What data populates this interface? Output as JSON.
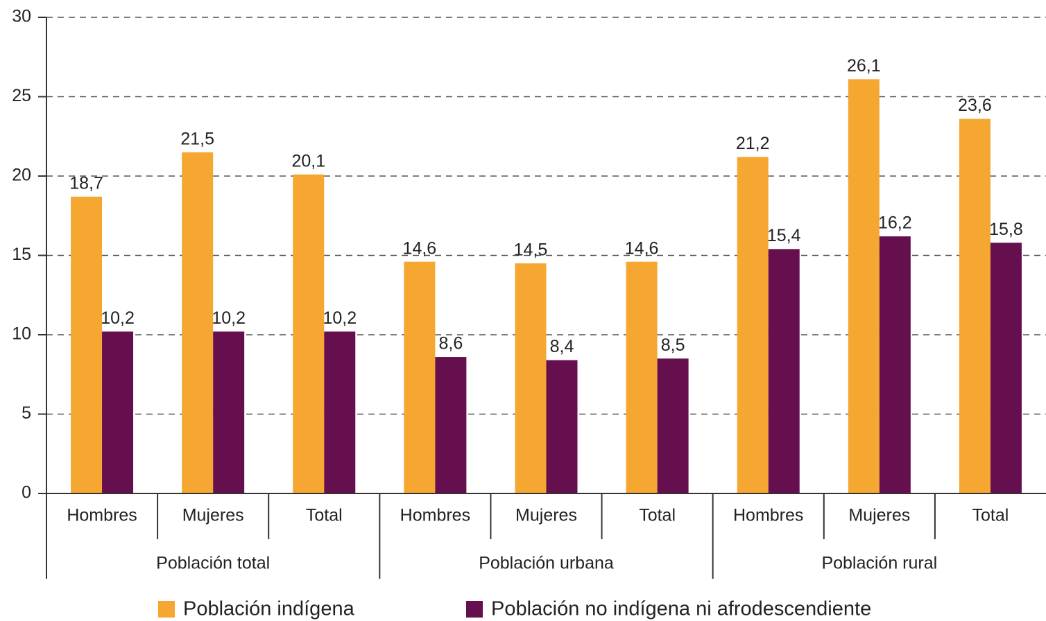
{
  "chart_data": {
    "type": "bar",
    "groups": [
      {
        "label": "Población total",
        "categories": [
          "Hombres",
          "Mujeres",
          "Total"
        ]
      },
      {
        "label": "Población urbana",
        "categories": [
          "Hombres",
          "Mujeres",
          "Total"
        ]
      },
      {
        "label": "Población rural",
        "categories": [
          "Hombres",
          "Mujeres",
          "Total"
        ]
      }
    ],
    "series": [
      {
        "name": "Población indígena",
        "color": "#f5a731",
        "values": [
          18.7,
          21.5,
          20.1,
          14.6,
          14.5,
          14.6,
          21.2,
          26.1,
          23.6
        ],
        "value_labels": [
          "18,7",
          "21,5",
          "20,1",
          "14,6",
          "14,5",
          "14,6",
          "21,2",
          "26,1",
          "23,6"
        ]
      },
      {
        "name": "Población no indígena ni afrodescendiente",
        "color": "#660f4e",
        "values": [
          10.2,
          10.2,
          10.2,
          8.6,
          8.4,
          8.5,
          15.4,
          16.2,
          15.8
        ],
        "value_labels": [
          "10,2",
          "10,2",
          "10,2",
          "8,6",
          "8,4",
          "8,5",
          "15,4",
          "16,2",
          "15,8"
        ]
      }
    ],
    "ylim": [
      0,
      30
    ],
    "yticks": [
      0,
      5,
      10,
      15,
      20,
      25,
      30
    ],
    "grid": true,
    "legend": "bottom"
  }
}
